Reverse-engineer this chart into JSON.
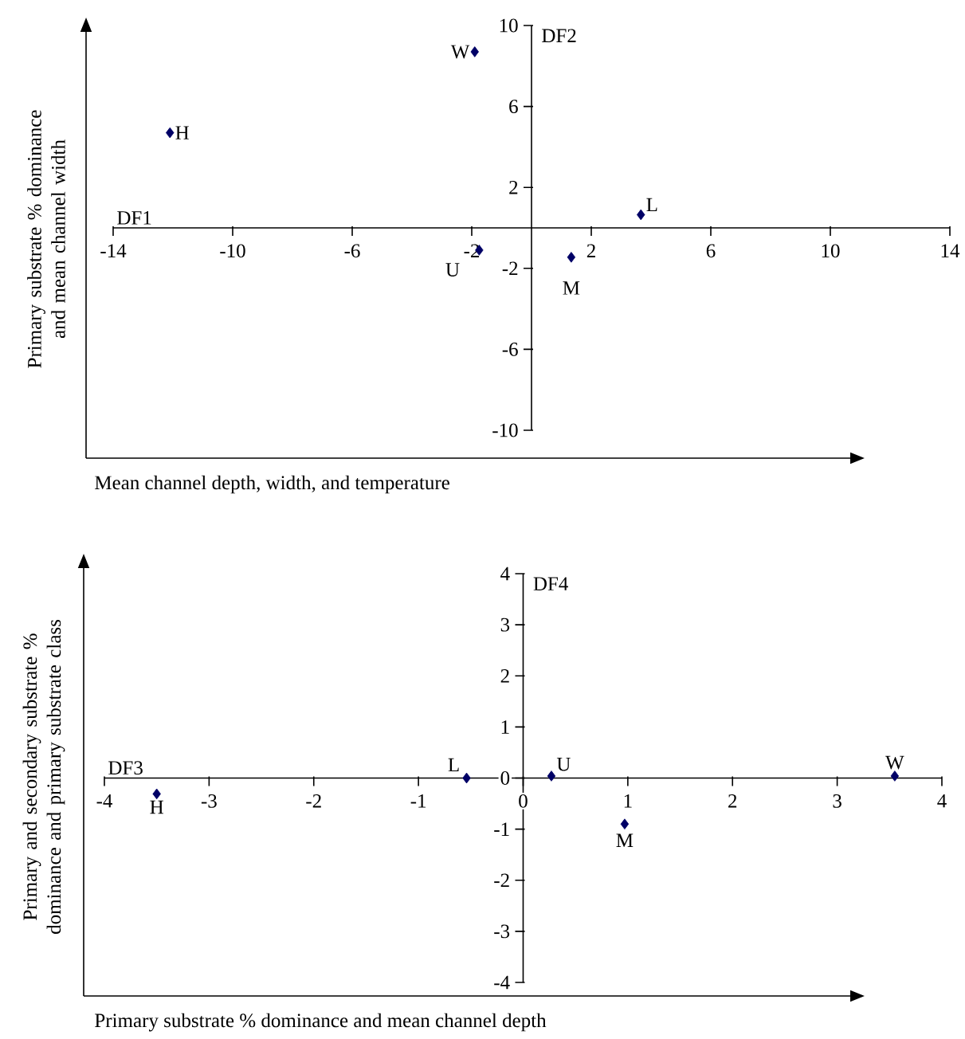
{
  "chart_data": [
    {
      "type": "scatter",
      "xlabel": "Mean channel depth, width, and temperature",
      "ylabel": "Primary substrate % dominance and mean channel width",
      "marker": "diamond",
      "xlim": [
        -14,
        14
      ],
      "xticks": [
        -14,
        -10,
        -6,
        -2,
        2,
        6,
        10,
        14
      ],
      "ylim": [
        -10,
        10
      ],
      "yticks": [
        -10,
        -6,
        -2,
        2,
        6,
        10
      ],
      "series": [
        {
          "color": "#000066",
          "x": [
            -1.9,
            -12.1,
            3.66,
            -1.75,
            1.33
          ],
          "values": [
            8.7,
            4.7,
            0.65,
            -1.1,
            -1.45
          ]
        }
      ],
      "annotations": [
        "DF1",
        "DF2",
        {
          "text": "W",
          "x": -1.9,
          "y": 8.7
        },
        {
          "text": "H",
          "x": -12.1,
          "y": 4.7
        },
        {
          "text": "L",
          "x": 3.66,
          "y": 0.65
        },
        {
          "text": "U",
          "x": -1.75,
          "y": -1.1
        },
        {
          "text": "M",
          "x": 1.33,
          "y": -1.45
        }
      ]
    },
    {
      "type": "scatter",
      "xlabel": "Primary substrate % dominance and mean channel depth",
      "ylabel": "Primary and secondary substrate % dominance and primary substrate class",
      "marker": "diamond",
      "xlim": [
        -4,
        4
      ],
      "xticks": [
        -4,
        -3,
        -2,
        -1,
        0,
        1,
        2,
        3,
        4
      ],
      "ylim": [
        -4,
        4
      ],
      "yticks": [
        -4,
        -3,
        -2,
        -1,
        0,
        1,
        2,
        3,
        4
      ],
      "series": [
        {
          "color": "#000066",
          "x": [
            -3.5,
            -0.54,
            0.27,
            0.97,
            3.55
          ],
          "values": [
            -0.31,
            0.0,
            0.04,
            -0.9,
            0.04
          ]
        }
      ],
      "annotations": [
        "DF3",
        "DF4",
        {
          "text": "H",
          "x": -3.5,
          "y": -0.31
        },
        {
          "text": "L",
          "x": -0.54,
          "y": 0.0
        },
        {
          "text": "U",
          "x": 0.27,
          "y": 0.04
        },
        {
          "text": "M",
          "x": 0.97,
          "y": -0.9
        },
        {
          "text": "W",
          "x": 3.55,
          "y": 0.04
        }
      ]
    }
  ]
}
